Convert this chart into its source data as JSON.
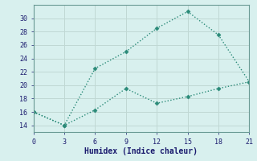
{
  "xlabel": "Humidex (Indice chaleur)",
  "line1_x": [
    0,
    3,
    6,
    9,
    12,
    15,
    18,
    21
  ],
  "line1_y": [
    16,
    14,
    22.5,
    25,
    28.5,
    31,
    27.5,
    20.5
  ],
  "line2_x": [
    0,
    3,
    6,
    9,
    12,
    15,
    18,
    21
  ],
  "line2_y": [
    16,
    14,
    16.3,
    19.5,
    17.3,
    18.3,
    19.5,
    20.5
  ],
  "line_color": "#2a8a78",
  "bg_color": "#d8f0ee",
  "grid_color": "#c0d8d4",
  "xlim": [
    0,
    21
  ],
  "ylim": [
    13,
    32
  ],
  "xticks": [
    0,
    3,
    6,
    9,
    12,
    15,
    18,
    21
  ],
  "yticks": [
    14,
    16,
    18,
    20,
    22,
    24,
    26,
    28,
    30
  ],
  "marker": "D",
  "marker_size": 2.5,
  "linewidth": 1.0
}
